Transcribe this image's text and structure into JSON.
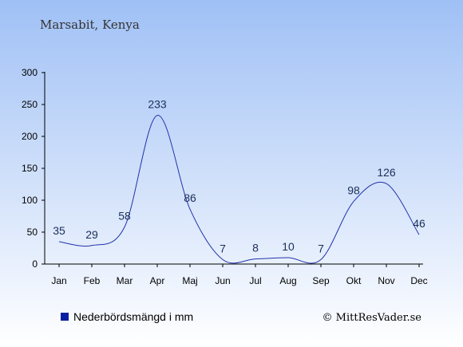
{
  "chart_data": {
    "type": "line",
    "title": "Marsabit, Kenya",
    "categories": [
      "Jan",
      "Feb",
      "Mar",
      "Apr",
      "Maj",
      "Jun",
      "Jul",
      "Aug",
      "Sep",
      "Okt",
      "Nov",
      "Dec"
    ],
    "series": [
      {
        "name": "Nederbördsmängd i mm",
        "values": [
          35,
          29,
          58,
          233,
          86,
          7,
          8,
          10,
          7,
          98,
          126,
          46
        ]
      }
    ],
    "data_labels": [
      "35",
      "29",
      "58",
      "233",
      "86",
      "7",
      "8",
      "10",
      "7",
      "98",
      "126",
      "46"
    ],
    "y_ticks": [
      0,
      50,
      100,
      150,
      200,
      250,
      300
    ],
    "ylim": [
      0,
      300
    ],
    "grid": false,
    "legend": "bottom-left",
    "colors": {
      "line": "#2233aa",
      "legend_marker": "#0a1ea0",
      "bg_top": "#9fc0f5",
      "bg_bottom": "#ffffff"
    }
  },
  "credit": "© MittResVader.se"
}
